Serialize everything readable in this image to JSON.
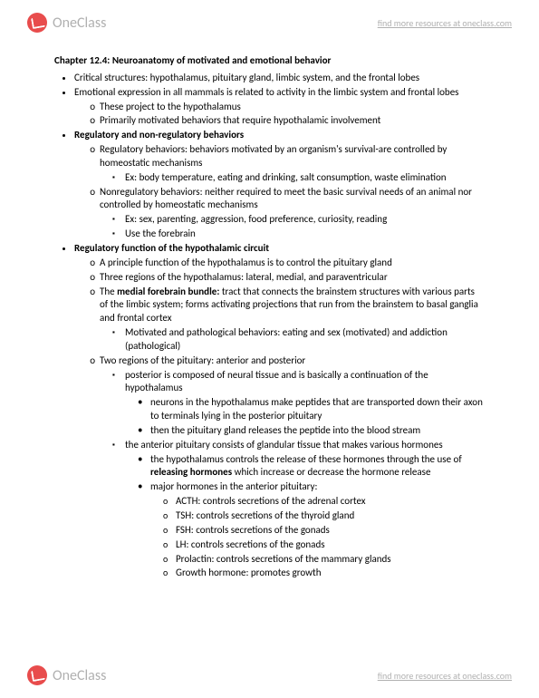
{
  "header": {
    "brand": "OneClass",
    "link": "find more resources at oneclass.com"
  },
  "footer": {
    "brand": "OneClass",
    "link": "find more resources at oneclass.com"
  },
  "doc": {
    "title": "Chapter 12.4: Neuroanatomy of motivated and emotional behavior",
    "b1": "Critical structures: hypothalamus, pituitary gland, limbic system, and the frontal lobes",
    "b2": "Emotional expression in all mammals is related to activity in the limbic system and frontal lobes",
    "b2_o1": "These project to the hypothalamus",
    "b2_o2": "Primarily motivated behaviors that require hypothalamic involvement",
    "b3": "Regulatory and non-regulatory behaviors",
    "b3_o1": "Regulatory behaviors: behaviors motivated by an organism's survival-are controlled by homeostatic mechanisms",
    "b3_o1_s1": "Ex: body temperature, eating and drinking, salt consumption, waste elimination",
    "b3_o2": "Nonregulatory behaviors: neither required to meet the basic survival needs of an animal nor controlled by homeostatic mechanisms",
    "b3_o2_s1": "Ex: sex, parenting, aggression, food preference, curiosity, reading",
    "b3_o2_s2": "Use the forebrain",
    "b4": "Regulatory function of the hypothalamic circuit",
    "b4_o1": "A principle function of the hypothalamus is to control the pituitary gland",
    "b4_o2": "Three regions of the hypothalamus: lateral, medial, and paraventricular",
    "b4_o3a": "The ",
    "b4_o3b": "medial forebrain bundle:",
    "b4_o3c": " tract that connects the brainstem structures with various parts of the limbic system; forms activating projections that run from the brainstem to basal ganglia and frontal cortex",
    "b4_o3_s1": "Motivated and pathological behaviors: eating and sex (motivated) and addiction (pathological)",
    "b4_o4": "Two regions of the pituitary: anterior and posterior",
    "b4_o4_s1": "posterior is composed of neural tissue and is basically a continuation of the hypothalamus",
    "b4_o4_s1_b1": "neurons in the hypothalamus make peptides that are transported down their axon to terminals lying in the posterior pituitary",
    "b4_o4_s1_b2": "then the pituitary gland releases the peptide into the blood stream",
    "b4_o4_s2": "the anterior pituitary consists of glandular tissue that makes various hormones",
    "b4_o4_s2_b1a": "the hypothalamus controls the release of these hormones through the use of ",
    "b4_o4_s2_b1b": "releasing hormones",
    "b4_o4_s2_b1c": " which increase or decrease the hormone release",
    "b4_o4_s2_b2": "major hormones in the anterior pituitary:",
    "h1": "ACTH: controls secretions of the adrenal cortex",
    "h2": "TSH: controls secretions of the thyroid gland",
    "h3": "FSH: controls secretions of the gonads",
    "h4": "LH: controls secretions of the gonads",
    "h5": "Prolactin: controls secretions of the mammary glands",
    "h6": "Growth hormone: promotes growth"
  }
}
